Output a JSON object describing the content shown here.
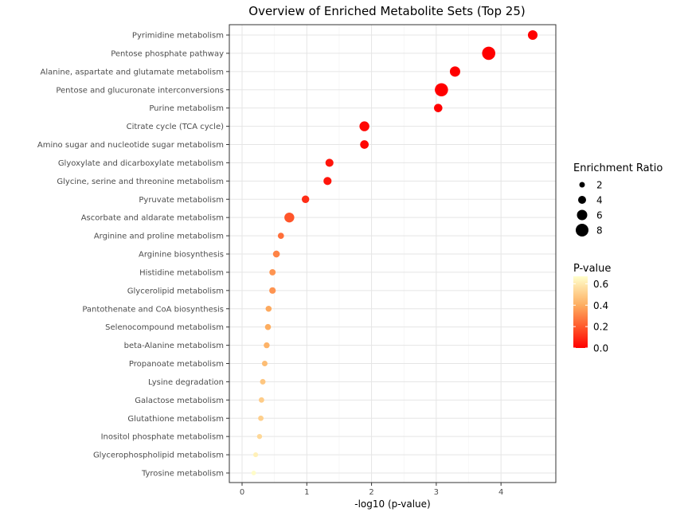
{
  "chart_data": {
    "type": "scatter",
    "title": "Overview of Enriched Metabolite Sets (Top 25)",
    "xlabel": "-log10 (p-value)",
    "ylabel": "",
    "xlim": [
      0,
      4.65
    ],
    "xticks": [
      0,
      1,
      2,
      3,
      4
    ],
    "grid": true,
    "categories": [
      "Pyrimidine metabolism",
      "Pentose phosphate pathway",
      "Alanine, aspartate and glutamate metabolism",
      "Pentose and glucuronate interconversions",
      "Purine metabolism",
      "Citrate cycle (TCA cycle)",
      "Amino sugar and nucleotide sugar metabolism",
      "Glyoxylate and dicarboxylate metabolism",
      "Glycine, serine and threonine metabolism",
      "Pyruvate metabolism",
      "Ascorbate and aldarate metabolism",
      "Arginine and proline metabolism",
      "Arginine biosynthesis",
      "Histidine metabolism",
      "Glycerolipid metabolism",
      "Pantothenate and CoA biosynthesis",
      "Selenocompound metabolism",
      "beta-Alanine metabolism",
      "Propanoate metabolism",
      "Lysine degradation",
      "Galactose metabolism",
      "Glutathione metabolism",
      "Inositol phosphate metabolism",
      "Glycerophospholipid metabolism",
      "Tyrosine metabolism"
    ],
    "x": [
      4.49,
      3.81,
      3.29,
      3.08,
      3.03,
      1.89,
      1.89,
      1.35,
      1.32,
      0.98,
      0.73,
      0.6,
      0.53,
      0.47,
      0.47,
      0.41,
      0.4,
      0.38,
      0.35,
      0.32,
      0.3,
      0.29,
      0.27,
      0.21,
      0.18
    ],
    "enrichment_ratio": [
      5.4,
      8.4,
      6.0,
      8.4,
      4.4,
      5.6,
      4.5,
      4.1,
      4.1,
      3.6,
      5.6,
      2.5,
      3.1,
      2.6,
      2.8,
      2.4,
      2.4,
      2.3,
      2.0,
      2.0,
      1.9,
      1.9,
      1.6,
      1.4,
      1.2
    ],
    "p_value": [
      3e-05,
      0.0002,
      0.0005,
      0.0008,
      0.0009,
      0.013,
      0.013,
      0.045,
      0.048,
      0.1,
      0.19,
      0.25,
      0.3,
      0.34,
      0.34,
      0.39,
      0.4,
      0.42,
      0.45,
      0.48,
      0.5,
      0.51,
      0.54,
      0.62,
      0.66
    ],
    "legend_size": {
      "title": "Enrichment Ratio",
      "values": [
        2,
        4,
        6,
        8
      ],
      "labels": [
        "2",
        "4",
        "6",
        "8"
      ],
      "color": "#000000"
    },
    "legend_color": {
      "title": "P-value",
      "min": 0,
      "max": 0.67,
      "ticks": [
        0.6,
        0.4,
        0.2,
        0.0
      ],
      "tick_labels": [
        "0.6",
        "0.4",
        "0.2",
        "0.0"
      ],
      "low_color": "#ff0000",
      "high_color": "#ffffcc"
    },
    "legend_position": "right"
  }
}
